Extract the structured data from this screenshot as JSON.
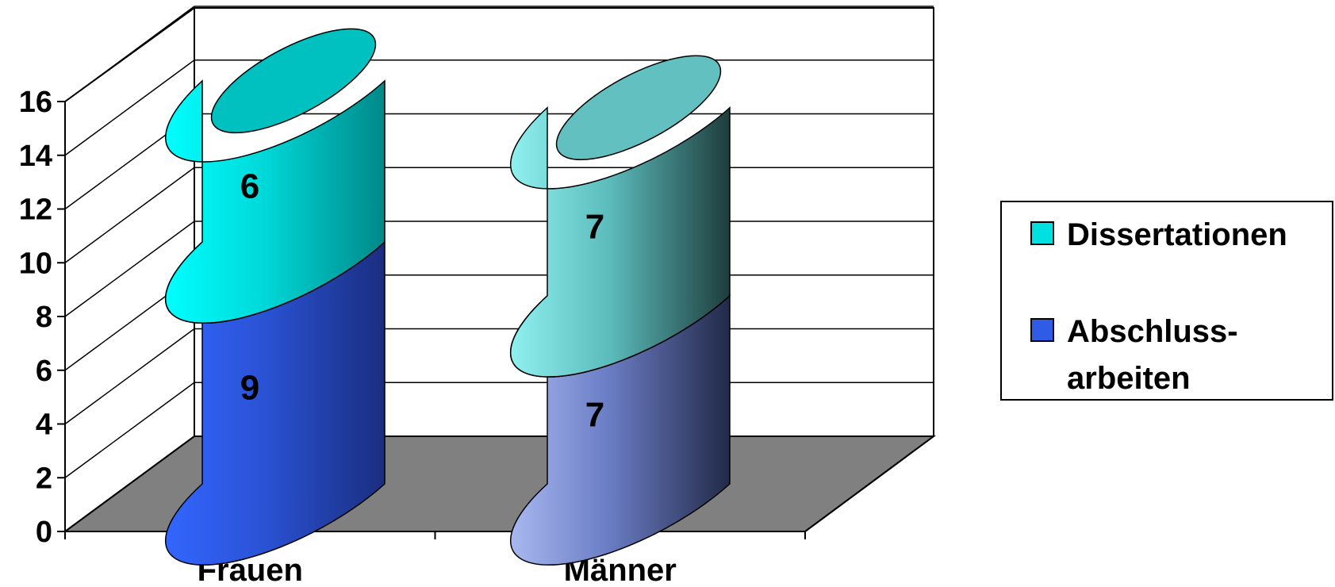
{
  "chart_data": {
    "type": "bar",
    "style": "3d-cylinder-stacked",
    "title": "",
    "xlabel": "",
    "ylabel": "",
    "categories": [
      "Frauen",
      "Männer"
    ],
    "series": [
      {
        "name": "Abschlussarbeiten",
        "legend_lines": [
          "Abschluss-",
          "arbeiten"
        ],
        "values": [
          9,
          7
        ],
        "data_labels": [
          "9",
          "7"
        ],
        "colors": [
          "#2e5ce6",
          "#8a9be0"
        ]
      },
      {
        "name": "Dissertationen",
        "legend_lines": [
          "Dissertationen"
        ],
        "values": [
          6,
          7
        ],
        "data_labels": [
          "6",
          "7"
        ],
        "colors": [
          "#00e0e0",
          "#70d4d4"
        ]
      }
    ],
    "ylim": [
      0,
      16
    ],
    "yticks": [
      "0",
      "2",
      "4",
      "6",
      "8",
      "10",
      "12",
      "14",
      "16"
    ],
    "grid": true,
    "legend_position": "right",
    "floor_color": "#808080"
  }
}
